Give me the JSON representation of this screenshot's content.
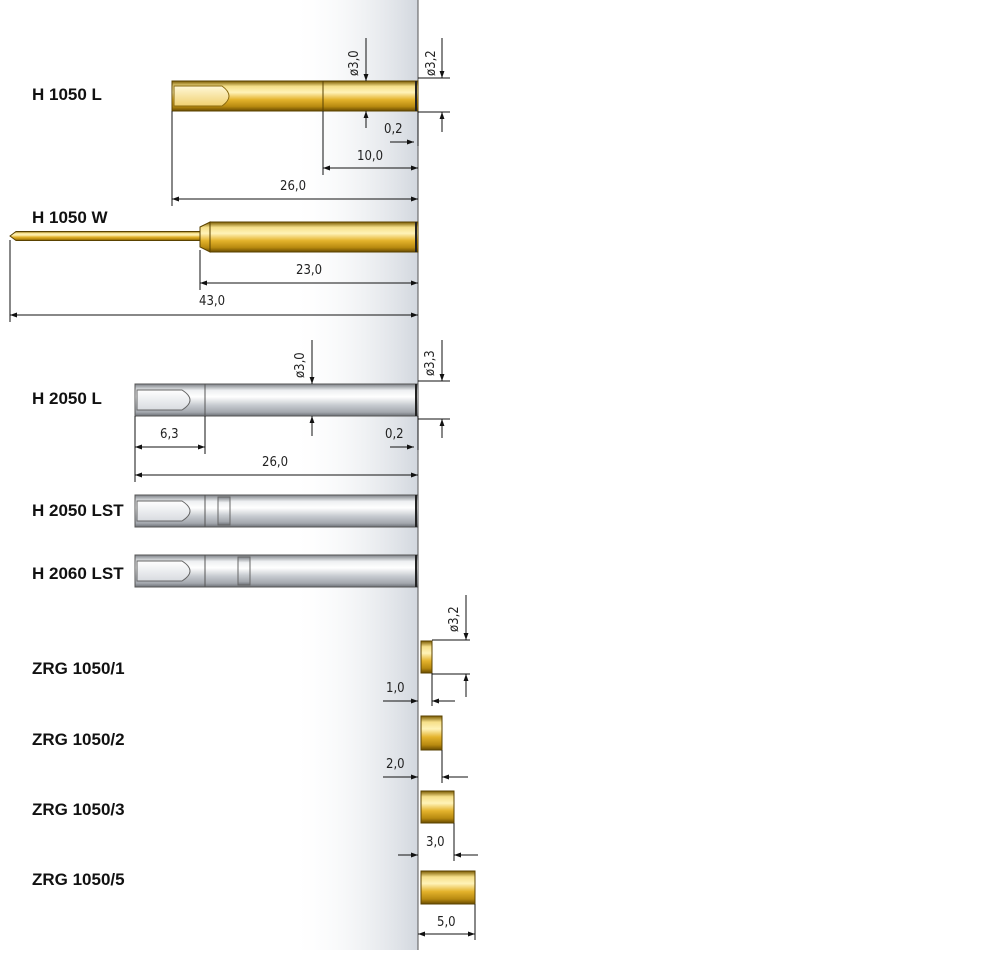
{
  "products": {
    "h1050l": "H 1050 L",
    "h1050w": "H 1050 W",
    "h2050l": "H 2050 L",
    "h2050lst": "H 2050 LST",
    "h2060lst": "H 2060 LST",
    "zrg1": "ZRG 1050/1",
    "zrg2": "ZRG 1050/2",
    "zrg3": "ZRG 1050/3",
    "zrg5": "ZRG 1050/5"
  },
  "dims": {
    "h1050l_d_inner": "ø3,0",
    "h1050l_d_outer": "ø3,2",
    "h1050l_step": "0,2",
    "h1050l_len1": "10,0",
    "h1050l_len2": "26,0",
    "h1050w_len1": "23,0",
    "h1050w_len2": "43,0",
    "h2050l_d_inner": "ø3,0",
    "h2050l_d_outer": "ø3,3",
    "h2050l_slot": "6,3",
    "h2050l_step": "0,2",
    "h2050l_len": "26,0",
    "zrg_d": "ø3,2",
    "zrg1_len": "1,0",
    "zrg2_len": "2,0",
    "zrg3_len": "3,0",
    "zrg5_len": "5,0"
  },
  "colors": {
    "gold": "#e0b020",
    "silver": "#c8ccd0",
    "panel": "#d4d9e0"
  }
}
